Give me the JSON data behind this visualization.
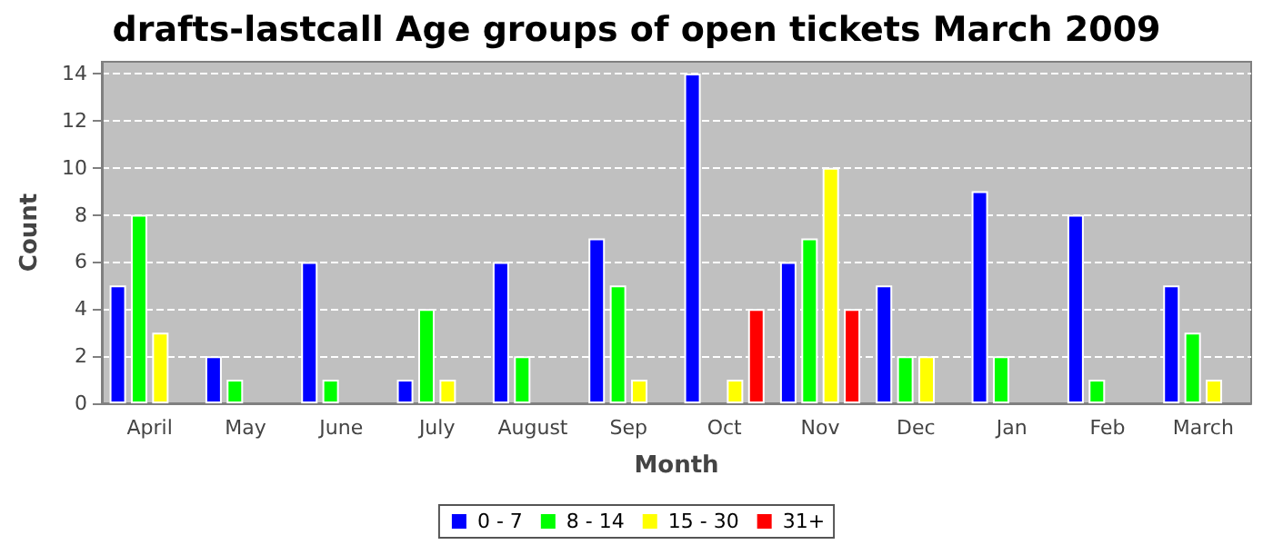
{
  "chart_data": {
    "type": "bar",
    "title": "drafts-lastcall Age groups of open tickets March 2009",
    "xlabel": "Month",
    "ylabel": "Count",
    "categories": [
      "April",
      "May",
      "June",
      "July",
      "August",
      "Sep",
      "Oct",
      "Nov",
      "Dec",
      "Jan",
      "Feb",
      "March"
    ],
    "series": [
      {
        "name": "0 - 7",
        "color": "#0000ff",
        "values": [
          5,
          2,
          6,
          1,
          6,
          7,
          14,
          6,
          5,
          9,
          8,
          5
        ]
      },
      {
        "name": "8 - 14",
        "color": "#00ff00",
        "values": [
          8,
          1,
          1,
          4,
          2,
          5,
          null,
          7,
          2,
          2,
          1,
          3
        ]
      },
      {
        "name": "15 - 30",
        "color": "#ffff00",
        "values": [
          3,
          null,
          null,
          1,
          null,
          1,
          1,
          10,
          2,
          null,
          null,
          1
        ]
      },
      {
        "name": "31+",
        "color": "#ff0000",
        "values": [
          null,
          null,
          null,
          null,
          null,
          null,
          4,
          4,
          null,
          null,
          null,
          null
        ]
      }
    ],
    "ylim": [
      0,
      14.5
    ],
    "yticks": [
      0,
      2,
      4,
      6,
      8,
      10,
      12,
      14
    ],
    "grid": "y",
    "legend": "bottom"
  }
}
